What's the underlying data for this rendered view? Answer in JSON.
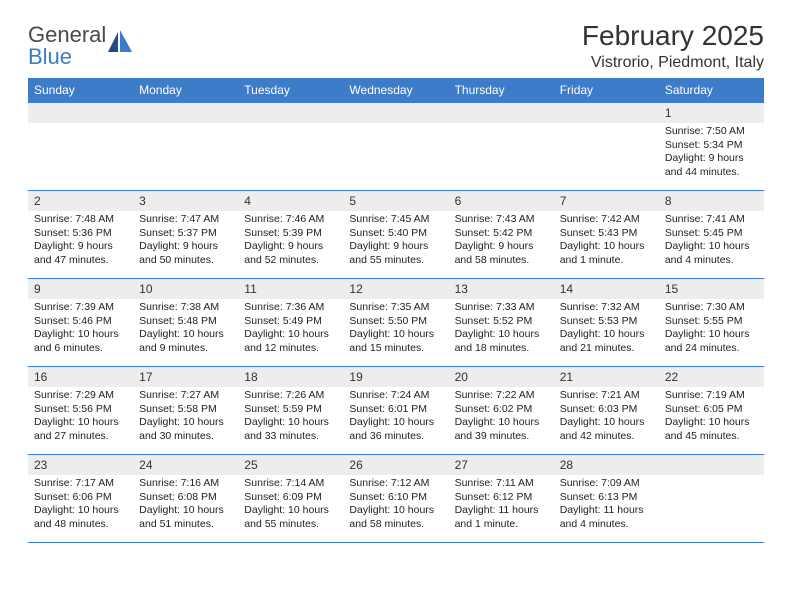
{
  "logo": {
    "text_general": "General",
    "text_blue": "Blue"
  },
  "title": "February 2025",
  "location": "Vistrorio, Piedmont, Italy",
  "colors": {
    "header_bg": "#3d7cc9",
    "header_fg": "#ffffff",
    "daynum_bg": "#ededed",
    "row_border": "#3d7cc9",
    "text": "#222222"
  },
  "day_headers": [
    "Sunday",
    "Monday",
    "Tuesday",
    "Wednesday",
    "Thursday",
    "Friday",
    "Saturday"
  ],
  "weeks": [
    [
      {
        "n": "",
        "l1": "",
        "l2": "",
        "l3": "",
        "l4": ""
      },
      {
        "n": "",
        "l1": "",
        "l2": "",
        "l3": "",
        "l4": ""
      },
      {
        "n": "",
        "l1": "",
        "l2": "",
        "l3": "",
        "l4": ""
      },
      {
        "n": "",
        "l1": "",
        "l2": "",
        "l3": "",
        "l4": ""
      },
      {
        "n": "",
        "l1": "",
        "l2": "",
        "l3": "",
        "l4": ""
      },
      {
        "n": "",
        "l1": "",
        "l2": "",
        "l3": "",
        "l4": ""
      },
      {
        "n": "1",
        "l1": "Sunrise: 7:50 AM",
        "l2": "Sunset: 5:34 PM",
        "l3": "Daylight: 9 hours",
        "l4": "and 44 minutes."
      }
    ],
    [
      {
        "n": "2",
        "l1": "Sunrise: 7:48 AM",
        "l2": "Sunset: 5:36 PM",
        "l3": "Daylight: 9 hours",
        "l4": "and 47 minutes."
      },
      {
        "n": "3",
        "l1": "Sunrise: 7:47 AM",
        "l2": "Sunset: 5:37 PM",
        "l3": "Daylight: 9 hours",
        "l4": "and 50 minutes."
      },
      {
        "n": "4",
        "l1": "Sunrise: 7:46 AM",
        "l2": "Sunset: 5:39 PM",
        "l3": "Daylight: 9 hours",
        "l4": "and 52 minutes."
      },
      {
        "n": "5",
        "l1": "Sunrise: 7:45 AM",
        "l2": "Sunset: 5:40 PM",
        "l3": "Daylight: 9 hours",
        "l4": "and 55 minutes."
      },
      {
        "n": "6",
        "l1": "Sunrise: 7:43 AM",
        "l2": "Sunset: 5:42 PM",
        "l3": "Daylight: 9 hours",
        "l4": "and 58 minutes."
      },
      {
        "n": "7",
        "l1": "Sunrise: 7:42 AM",
        "l2": "Sunset: 5:43 PM",
        "l3": "Daylight: 10 hours",
        "l4": "and 1 minute."
      },
      {
        "n": "8",
        "l1": "Sunrise: 7:41 AM",
        "l2": "Sunset: 5:45 PM",
        "l3": "Daylight: 10 hours",
        "l4": "and 4 minutes."
      }
    ],
    [
      {
        "n": "9",
        "l1": "Sunrise: 7:39 AM",
        "l2": "Sunset: 5:46 PM",
        "l3": "Daylight: 10 hours",
        "l4": "and 6 minutes."
      },
      {
        "n": "10",
        "l1": "Sunrise: 7:38 AM",
        "l2": "Sunset: 5:48 PM",
        "l3": "Daylight: 10 hours",
        "l4": "and 9 minutes."
      },
      {
        "n": "11",
        "l1": "Sunrise: 7:36 AM",
        "l2": "Sunset: 5:49 PM",
        "l3": "Daylight: 10 hours",
        "l4": "and 12 minutes."
      },
      {
        "n": "12",
        "l1": "Sunrise: 7:35 AM",
        "l2": "Sunset: 5:50 PM",
        "l3": "Daylight: 10 hours",
        "l4": "and 15 minutes."
      },
      {
        "n": "13",
        "l1": "Sunrise: 7:33 AM",
        "l2": "Sunset: 5:52 PM",
        "l3": "Daylight: 10 hours",
        "l4": "and 18 minutes."
      },
      {
        "n": "14",
        "l1": "Sunrise: 7:32 AM",
        "l2": "Sunset: 5:53 PM",
        "l3": "Daylight: 10 hours",
        "l4": "and 21 minutes."
      },
      {
        "n": "15",
        "l1": "Sunrise: 7:30 AM",
        "l2": "Sunset: 5:55 PM",
        "l3": "Daylight: 10 hours",
        "l4": "and 24 minutes."
      }
    ],
    [
      {
        "n": "16",
        "l1": "Sunrise: 7:29 AM",
        "l2": "Sunset: 5:56 PM",
        "l3": "Daylight: 10 hours",
        "l4": "and 27 minutes."
      },
      {
        "n": "17",
        "l1": "Sunrise: 7:27 AM",
        "l2": "Sunset: 5:58 PM",
        "l3": "Daylight: 10 hours",
        "l4": "and 30 minutes."
      },
      {
        "n": "18",
        "l1": "Sunrise: 7:26 AM",
        "l2": "Sunset: 5:59 PM",
        "l3": "Daylight: 10 hours",
        "l4": "and 33 minutes."
      },
      {
        "n": "19",
        "l1": "Sunrise: 7:24 AM",
        "l2": "Sunset: 6:01 PM",
        "l3": "Daylight: 10 hours",
        "l4": "and 36 minutes."
      },
      {
        "n": "20",
        "l1": "Sunrise: 7:22 AM",
        "l2": "Sunset: 6:02 PM",
        "l3": "Daylight: 10 hours",
        "l4": "and 39 minutes."
      },
      {
        "n": "21",
        "l1": "Sunrise: 7:21 AM",
        "l2": "Sunset: 6:03 PM",
        "l3": "Daylight: 10 hours",
        "l4": "and 42 minutes."
      },
      {
        "n": "22",
        "l1": "Sunrise: 7:19 AM",
        "l2": "Sunset: 6:05 PM",
        "l3": "Daylight: 10 hours",
        "l4": "and 45 minutes."
      }
    ],
    [
      {
        "n": "23",
        "l1": "Sunrise: 7:17 AM",
        "l2": "Sunset: 6:06 PM",
        "l3": "Daylight: 10 hours",
        "l4": "and 48 minutes."
      },
      {
        "n": "24",
        "l1": "Sunrise: 7:16 AM",
        "l2": "Sunset: 6:08 PM",
        "l3": "Daylight: 10 hours",
        "l4": "and 51 minutes."
      },
      {
        "n": "25",
        "l1": "Sunrise: 7:14 AM",
        "l2": "Sunset: 6:09 PM",
        "l3": "Daylight: 10 hours",
        "l4": "and 55 minutes."
      },
      {
        "n": "26",
        "l1": "Sunrise: 7:12 AM",
        "l2": "Sunset: 6:10 PM",
        "l3": "Daylight: 10 hours",
        "l4": "and 58 minutes."
      },
      {
        "n": "27",
        "l1": "Sunrise: 7:11 AM",
        "l2": "Sunset: 6:12 PM",
        "l3": "Daylight: 11 hours",
        "l4": "and 1 minute."
      },
      {
        "n": "28",
        "l1": "Sunrise: 7:09 AM",
        "l2": "Sunset: 6:13 PM",
        "l3": "Daylight: 11 hours",
        "l4": "and 4 minutes."
      },
      {
        "n": "",
        "l1": "",
        "l2": "",
        "l3": "",
        "l4": ""
      }
    ]
  ]
}
